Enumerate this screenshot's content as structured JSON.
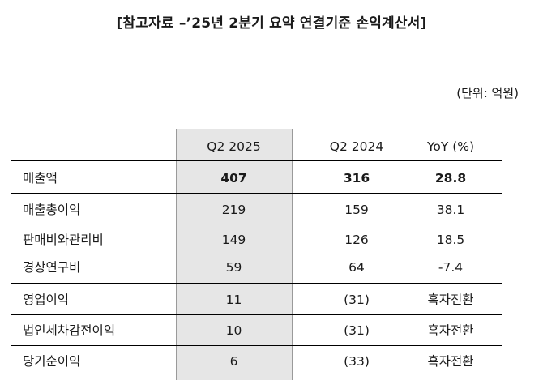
{
  "title": "[참고자료 –’25년 2분기 요약 연결기준 손익계산서]",
  "unit": "(단위: 억원)",
  "headers": [
    "Q2 2025",
    "Q2 2024",
    "YoY (%)"
  ],
  "rows": [
    {
      "label": "매출액",
      "q2_2025": "407",
      "q2_2024": "316",
      "yoy": "28.8"
    },
    {
      "label": "매출총이익",
      "q2_2025": "219",
      "q2_2024": "159",
      "yoy": "38.1"
    },
    {
      "label": "판매비와관리비",
      "q2_2025": "149",
      "q2_2024": "126",
      "yoy": "18.5"
    },
    {
      "label": "경상연구비",
      "q2_2025": "59",
      "q2_2024": "64",
      "yoy": "-7.4"
    },
    {
      "label": "영업이익",
      "q2_2025": "11",
      "q2_2024": "(31)",
      "yoy": "흑자전환"
    },
    {
      "label": "법인세차감전이익",
      "q2_2025": "10",
      "q2_2024": "(31)",
      "yoy": "흑자전환"
    },
    {
      "label": "당기순이익",
      "q2_2025": "6",
      "q2_2024": "(33)",
      "yoy": "흑자전환"
    }
  ]
}
